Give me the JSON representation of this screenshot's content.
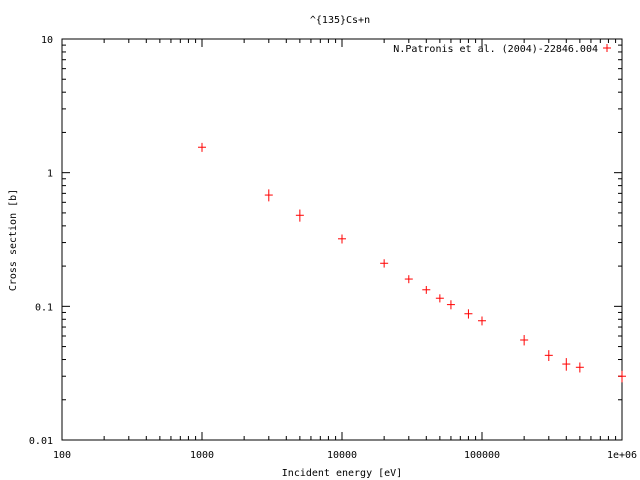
{
  "chart_data": {
    "type": "scatter",
    "title": "^{135}Cs+n",
    "xlabel": "Incident energy [eV]",
    "ylabel": "Cross section [b]",
    "xscale": "log",
    "yscale": "log",
    "xlim": [
      100,
      1000000
    ],
    "ylim": [
      0.01,
      10
    ],
    "x_tick_labels": [
      "100",
      "1000",
      "10000",
      "100000",
      "1e+06"
    ],
    "y_tick_labels": [
      "0.01",
      "0.1",
      "1",
      "10"
    ],
    "x_ticks": [
      100,
      1000,
      10000,
      100000,
      1000000
    ],
    "y_ticks": [
      0.01,
      0.1,
      1,
      10
    ],
    "legend_position": "top-right",
    "marker_color": "#ff0000",
    "series": [
      {
        "name": "N.Patronis et al. (2004)-22846.004",
        "x": [
          1000,
          3000,
          5000,
          10000,
          20000,
          30000,
          40000,
          50000,
          60000,
          80000,
          100000,
          200000,
          300000,
          400000,
          500000,
          1000000
        ],
        "y": [
          1.55,
          0.68,
          0.48,
          0.32,
          0.21,
          0.16,
          0.133,
          0.115,
          0.103,
          0.088,
          0.078,
          0.056,
          0.043,
          0.037,
          0.035,
          0.03
        ],
        "y_err": [
          0.12,
          0.07,
          0.05,
          0.025,
          0.015,
          0.011,
          0.009,
          0.008,
          0.008,
          0.007,
          0.006,
          0.005,
          0.004,
          0.004,
          0.003,
          0.003
        ]
      }
    ]
  }
}
